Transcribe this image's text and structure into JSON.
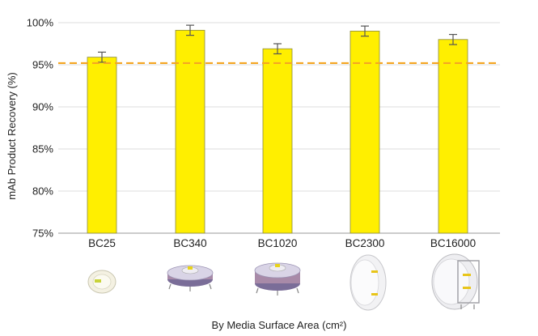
{
  "chart_data": {
    "type": "bar",
    "categories": [
      "BC25",
      "BC340",
      "BC1020",
      "BC2300",
      "BC16000"
    ],
    "series": [
      {
        "values": [
          95.9,
          99.1,
          96.9,
          99.0,
          98.0
        ],
        "error": [
          0.6,
          0.6,
          0.6,
          0.6,
          0.6
        ]
      }
    ],
    "reference_line": {
      "y": 95.2,
      "style": "dashed",
      "color": "#f5a623"
    },
    "ylabel": "mAb Product Recovery (%)",
    "xlabel": "By Media Surface Area (cm²)",
    "ylim": [
      75,
      100
    ],
    "yticks": [
      "75%",
      "80%",
      "85%",
      "90%",
      "95%",
      "100%"
    ],
    "grid": true,
    "bar_color": "#ffef00",
    "bar_edge_color": "#8a8a40",
    "product_images": [
      "bc25-capsule-icon",
      "bc340-capsule-icon",
      "bc1020-capsule-icon",
      "bc2300-cassette-icon",
      "bc16000-cassette-icon"
    ]
  }
}
